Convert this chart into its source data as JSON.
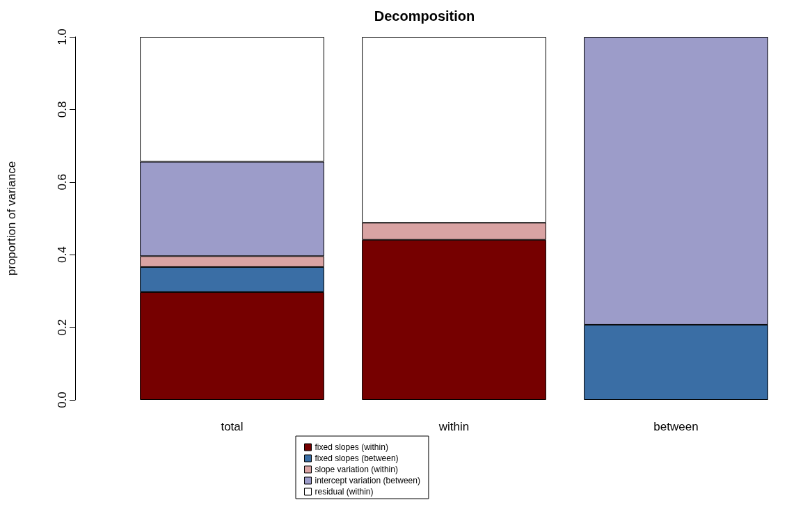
{
  "chart_data": {
    "type": "bar",
    "title": "Decomposition",
    "ylabel": "proportion of variance",
    "categories": [
      "total",
      "within",
      "between"
    ],
    "stacked": true,
    "series": [
      {
        "name": "fixed slopes (within)",
        "color": "#760000",
        "values": [
          0.297,
          0.441,
          0
        ]
      },
      {
        "name": "fixed slopes (between)",
        "color": "#3a6ea5",
        "values": [
          0.069,
          0,
          0.207
        ]
      },
      {
        "name": "slope variation (within)",
        "color": "#d9a3a3",
        "values": [
          0.03,
          0.047,
          0
        ]
      },
      {
        "name": "intercept variation (between)",
        "color": "#9c9cc9",
        "values": [
          0.26,
          0,
          0.793
        ]
      },
      {
        "name": "residual (within)",
        "color": "#ffffff",
        "values": [
          0.344,
          0.512,
          0
        ]
      }
    ],
    "ylim": [
      0,
      1
    ],
    "yticks": [
      {
        "value": 0,
        "label": "0.0"
      },
      {
        "value": 0.2,
        "label": "0.2"
      },
      {
        "value": 0.4,
        "label": "0.4"
      },
      {
        "value": 0.6,
        "label": "0.6"
      },
      {
        "value": 0.8,
        "label": "0.8"
      },
      {
        "value": 1,
        "label": "1.0"
      }
    ],
    "grid": false,
    "legend": "bottom"
  }
}
